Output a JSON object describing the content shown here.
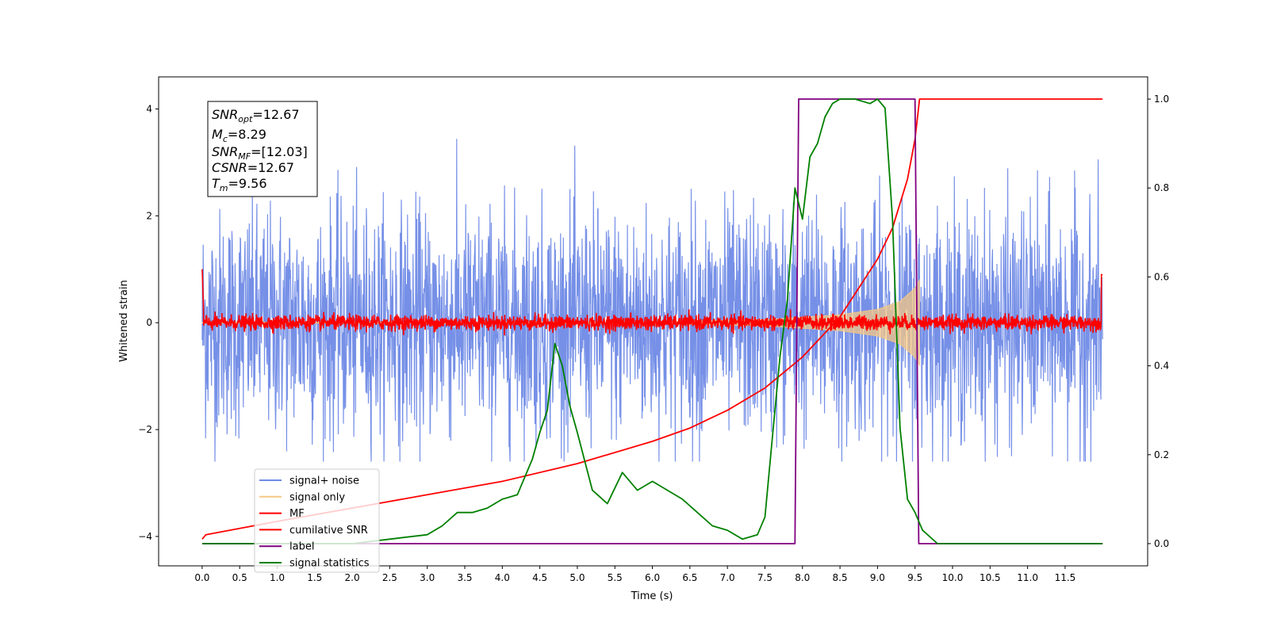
{
  "chart_data": {
    "type": "line",
    "title": "",
    "xlabel": "Time (s)",
    "ylabel": "Whitened strain",
    "xlim": [
      -0.58,
      12.6
    ],
    "ylim_left": [
      -4.55,
      4.6
    ],
    "ylim_right": [
      -0.05,
      1.05
    ],
    "x_ticks": [
      "0.0",
      "0.5",
      "1.0",
      "1.5",
      "2.0",
      "2.5",
      "3.0",
      "3.5",
      "4.0",
      "4.5",
      "5.0",
      "5.5",
      "6.0",
      "6.5",
      "7.0",
      "7.5",
      "8.0",
      "8.5",
      "9.0",
      "9.5",
      "10.0",
      "10.5",
      "11.0",
      "11.5"
    ],
    "y_ticks_left": [
      "−4",
      "−2",
      "0",
      "2",
      "4"
    ],
    "y_ticks_right": [
      "0.0",
      "0.2",
      "0.4",
      "0.6",
      "0.8",
      "1.0"
    ],
    "grid": false,
    "legend_position": "lower-left",
    "info_box": {
      "snr_opt": "=12.67",
      "mc": "=8.29",
      "snr_mf": "=[12.03]",
      "csnr": "=12.67",
      "tm": "=9.56"
    },
    "series": [
      {
        "name": "signal+ noise",
        "color": "#6f8ae6",
        "axis": "left",
        "description_range": [
          -2.6,
          4.2
        ],
        "t_range": [
          0.0,
          12.0
        ],
        "typical_amplitude": 1.0
      },
      {
        "name": "signal only",
        "color": "#f5c784",
        "axis": "left",
        "envelope": {
          "t": [
            0.0,
            6.0,
            7.5,
            8.5,
            9.0,
            9.3,
            9.5,
            9.56
          ],
          "amp": [
            0.01,
            0.02,
            0.06,
            0.15,
            0.25,
            0.4,
            0.65,
            0.8
          ]
        }
      },
      {
        "name": "MF",
        "color": "#ff0000",
        "axis": "left",
        "noise_amplitude": 0.1,
        "t_range": [
          0.0,
          12.0
        ]
      },
      {
        "name": "cumilative SNR",
        "color": "#ff0000",
        "axis": "right",
        "x": [
          0.0,
          0.05,
          1.0,
          2.0,
          3.0,
          4.0,
          5.0,
          6.0,
          6.5,
          7.0,
          7.5,
          8.0,
          8.5,
          9.0,
          9.2,
          9.4,
          9.5,
          9.56,
          9.6,
          12.0
        ],
        "y": [
          0.01,
          0.02,
          0.05,
          0.08,
          0.11,
          0.14,
          0.18,
          0.23,
          0.26,
          0.3,
          0.35,
          0.42,
          0.51,
          0.64,
          0.71,
          0.82,
          0.91,
          1.0,
          1.0,
          1.0
        ]
      },
      {
        "name": "label",
        "color": "#800080",
        "axis": "right",
        "x": [
          0.0,
          7.9,
          7.95,
          9.5,
          9.55,
          12.0
        ],
        "y": [
          0.0,
          0.0,
          1.0,
          1.0,
          0.0,
          0.0
        ]
      },
      {
        "name": "signal statistics",
        "color": "#008000",
        "axis": "right",
        "x": [
          0.0,
          0.5,
          1.0,
          1.5,
          2.0,
          2.5,
          3.0,
          3.2,
          3.4,
          3.6,
          3.8,
          4.0,
          4.2,
          4.4,
          4.5,
          4.6,
          4.7,
          4.8,
          4.9,
          5.0,
          5.2,
          5.4,
          5.6,
          5.8,
          6.0,
          6.2,
          6.4,
          6.6,
          6.8,
          7.0,
          7.2,
          7.4,
          7.5,
          7.6,
          7.7,
          7.8,
          7.9,
          8.0,
          8.1,
          8.2,
          8.3,
          8.4,
          8.5,
          8.7,
          8.9,
          9.0,
          9.1,
          9.2,
          9.3,
          9.4,
          9.5,
          9.6,
          9.8,
          10.0,
          11.0,
          12.0
        ],
        "y": [
          0.0,
          0.0,
          0.0,
          0.0,
          0.0,
          0.01,
          0.02,
          0.04,
          0.07,
          0.07,
          0.08,
          0.1,
          0.11,
          0.19,
          0.25,
          0.3,
          0.45,
          0.4,
          0.31,
          0.25,
          0.12,
          0.09,
          0.16,
          0.12,
          0.14,
          0.12,
          0.1,
          0.07,
          0.04,
          0.03,
          0.01,
          0.02,
          0.06,
          0.24,
          0.42,
          0.55,
          0.8,
          0.73,
          0.87,
          0.9,
          0.96,
          0.99,
          1.0,
          1.0,
          0.99,
          1.0,
          0.98,
          0.73,
          0.26,
          0.1,
          0.07,
          0.03,
          0.0,
          0.0,
          0.0,
          0.0
        ]
      }
    ]
  }
}
